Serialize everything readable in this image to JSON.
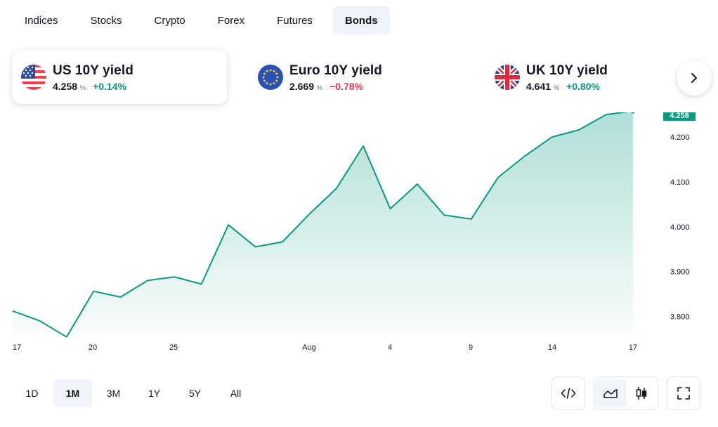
{
  "tabs": [
    {
      "label": "Indices",
      "active": false
    },
    {
      "label": "Stocks",
      "active": false
    },
    {
      "label": "Crypto",
      "active": false
    },
    {
      "label": "Forex",
      "active": false
    },
    {
      "label": "Futures",
      "active": false
    },
    {
      "label": "Bonds",
      "active": true
    }
  ],
  "cards": [
    {
      "title": "US 10Y yield",
      "value": "4.258",
      "unit": "%",
      "change": "+0.14%",
      "direction": "up",
      "flag": "us-flag-icon",
      "active": true
    },
    {
      "title": "Euro 10Y yield",
      "value": "2.669",
      "unit": "%",
      "change": "−0.78%",
      "direction": "down",
      "flag": "eu-flag-icon",
      "active": false
    },
    {
      "title": "UK 10Y yield",
      "value": "4.641",
      "unit": "%",
      "change": "+0.80%",
      "direction": "up",
      "flag": "uk-flag-icon",
      "active": false
    }
  ],
  "next_icon": "chevron-right-icon",
  "chart_data": {
    "type": "area",
    "x_tick_labels": [
      "17",
      "20",
      "25",
      "Aug",
      "4",
      "9",
      "14",
      "17"
    ],
    "y_tick_labels": [
      "4.200",
      "4.100",
      "4.000",
      "3.900",
      "3.800"
    ],
    "y_ticks": [
      4.2,
      4.1,
      4.0,
      3.9,
      3.8
    ],
    "ylim": [
      3.76,
      4.255
    ],
    "values": [
      3.812,
      3.79,
      3.754,
      3.856,
      3.843,
      3.88,
      3.888,
      3.872,
      4.004,
      3.955,
      3.966,
      4.028,
      4.085,
      4.18,
      4.04,
      4.095,
      4.026,
      4.017,
      4.11,
      4.158,
      4.2,
      4.216,
      4.25,
      4.258
    ],
    "last_value_label": "4.258",
    "line_color": "#089981",
    "grid": false
  },
  "ranges": [
    {
      "label": "1D",
      "active": false
    },
    {
      "label": "1M",
      "active": true
    },
    {
      "label": "3M",
      "active": false
    },
    {
      "label": "1Y",
      "active": false
    },
    {
      "label": "5Y",
      "active": false
    },
    {
      "label": "All",
      "active": false
    }
  ],
  "tools": {
    "embed_icon": "code-icon",
    "area_icon": "area-chart-icon",
    "candles_icon": "candlestick-icon",
    "fullscreen_icon": "fullscreen-icon",
    "selected_style": "area"
  }
}
